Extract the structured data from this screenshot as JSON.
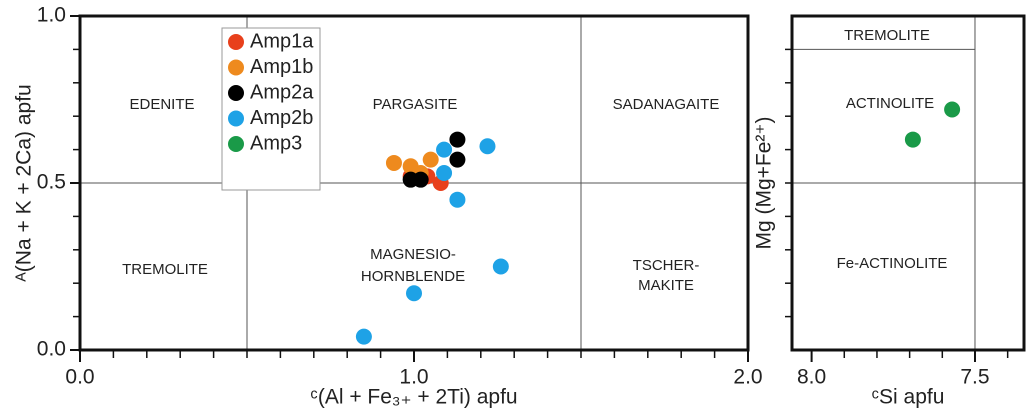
{
  "chart_data": [
    {
      "type": "scatter",
      "xlabel": "ᶜ(Al + Fe₃₊ + 2Ti) apfu",
      "ylabel": "ᴬ(Na + K + 2Ca) apfu",
      "xlim": [
        0,
        2
      ],
      "ylim": [
        0,
        1
      ],
      "xticks": [
        {
          "value": 0,
          "label": "0.0"
        },
        {
          "value": 1,
          "label": "1.0"
        },
        {
          "value": 2,
          "label": "2.0"
        }
      ],
      "yticks": [
        {
          "value": 0,
          "label": "0.0"
        },
        {
          "value": 0.5,
          "label": "0.5"
        },
        {
          "value": 1,
          "label": "1.0"
        }
      ],
      "xticks_minor": [
        0.1,
        0.2,
        0.3,
        0.4,
        0.5,
        0.6,
        0.7,
        0.8,
        0.9,
        1.1,
        1.2,
        1.3,
        1.4,
        1.5,
        1.6,
        1.7,
        1.8,
        1.9
      ],
      "yticks_minor": [
        0.1,
        0.2,
        0.3,
        0.4,
        0.6,
        0.7,
        0.8,
        0.9
      ],
      "boundaries": [
        [
          0.5,
          0,
          0.5,
          1
        ],
        [
          1.5,
          0,
          1.5,
          1
        ],
        [
          0,
          0.5,
          2,
          0.5
        ]
      ],
      "annotations": [
        "EDENITE",
        "PARGASITE",
        "SADANAGAITE",
        "TREMOLITE",
        "MAGNESIO-",
        "HORNBLENDE",
        "TSCHER-",
        "MAKITE"
      ],
      "series": [
        {
          "name": "Amp1a",
          "color": "#e8401c",
          "x": [
            0.99,
            1.02,
            1.04,
            1.08
          ],
          "values": [
            0.52,
            0.52,
            0.52,
            0.5
          ]
        },
        {
          "name": "Amp1b",
          "color": "#ee8a1e",
          "x": [
            0.94,
            0.99,
            1.05,
            1.02
          ],
          "values": [
            0.56,
            0.55,
            0.57,
            0.53
          ]
        },
        {
          "name": "Amp2a",
          "color": "#000000",
          "x": [
            0.99,
            1.02,
            1.13,
            1.13
          ],
          "values": [
            0.51,
            0.51,
            0.63,
            0.57
          ]
        },
        {
          "name": "Amp2b",
          "color": "#1ea2e6",
          "x": [
            1.09,
            1.22,
            1.09,
            1.13,
            1.26,
            1.0,
            0.85
          ],
          "values": [
            0.6,
            0.61,
            0.53,
            0.45,
            0.25,
            0.17,
            0.04
          ]
        },
        {
          "name": "Amp3",
          "color": "#1a9a48",
          "x": [],
          "values": []
        }
      ]
    },
    {
      "type": "scatter",
      "xlabel": "ᶜSi apfu",
      "ylabel": "Mg (Mg+Fe²⁺)",
      "xlim": [
        8.06,
        7.35
      ],
      "ylim": [
        0,
        1
      ],
      "xticks": [
        {
          "value": 8,
          "label": "8.0"
        },
        {
          "value": 7.5,
          "label": "7.5"
        }
      ],
      "xticks_minor": [
        7.9,
        7.8,
        7.7,
        7.6,
        7.4
      ],
      "yticks_minor": [
        0.1,
        0.2,
        0.3,
        0.4,
        0.5,
        0.6,
        0.7,
        0.8,
        0.9
      ],
      "boundaries": [
        [
          7.5,
          0,
          7.5,
          1
        ],
        [
          8.06,
          0.5,
          7.35,
          0.5
        ],
        [
          8.06,
          0.9,
          7.5,
          0.9
        ]
      ],
      "annotations": [
        "TREMOLITE",
        "ACTINOLITE",
        "Fe-ACTINOLITE"
      ],
      "series": [
        {
          "name": "Amp3",
          "color": "#1a9a48",
          "x": [
            7.69,
            7.57
          ],
          "values": [
            0.63,
            0.72
          ]
        }
      ]
    }
  ]
}
